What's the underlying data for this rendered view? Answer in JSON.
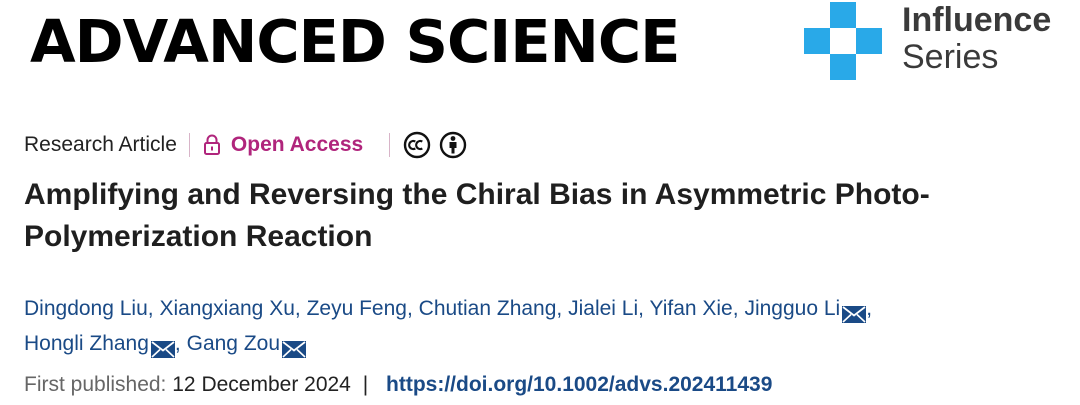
{
  "header": {
    "journal_name": "ADVANCED SCIENCE",
    "badge": {
      "line1": "Influence",
      "line2": "Series",
      "color": "#29a9e8"
    }
  },
  "meta": {
    "article_type": "Research Article",
    "access_label": "Open Access",
    "access_color": "#b0257c",
    "icons": [
      "lock-icon",
      "cc-icon",
      "by-icon"
    ]
  },
  "title": "Amplifying and Reversing the Chiral Bias in Asymmetric Photo-Polymerization Reaction",
  "authors": [
    {
      "name": "Dingdong Liu",
      "corresponding": false
    },
    {
      "name": "Xiangxiang Xu",
      "corresponding": false
    },
    {
      "name": "Zeyu Feng",
      "corresponding": false
    },
    {
      "name": "Chutian Zhang",
      "corresponding": false
    },
    {
      "name": "Jialei Li",
      "corresponding": false
    },
    {
      "name": "Yifan Xie",
      "corresponding": false
    },
    {
      "name": "Jingguo Li",
      "corresponding": true
    },
    {
      "name": "Hongli Zhang",
      "corresponding": true
    },
    {
      "name": "Gang Zou",
      "corresponding": true
    }
  ],
  "publication": {
    "label": "First published:",
    "date": "12 December 2024",
    "separator": "|",
    "doi": "https://doi.org/10.1002/advs.202411439"
  }
}
